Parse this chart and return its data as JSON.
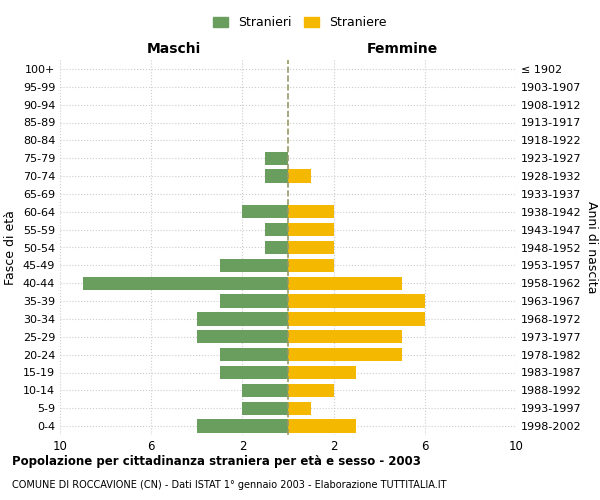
{
  "age_groups": [
    "0-4",
    "5-9",
    "10-14",
    "15-19",
    "20-24",
    "25-29",
    "30-34",
    "35-39",
    "40-44",
    "45-49",
    "50-54",
    "55-59",
    "60-64",
    "65-69",
    "70-74",
    "75-79",
    "80-84",
    "85-89",
    "90-94",
    "95-99",
    "100+"
  ],
  "birth_years": [
    "1998-2002",
    "1993-1997",
    "1988-1992",
    "1983-1987",
    "1978-1982",
    "1973-1977",
    "1968-1972",
    "1963-1967",
    "1958-1962",
    "1953-1957",
    "1948-1952",
    "1943-1947",
    "1938-1942",
    "1933-1937",
    "1928-1932",
    "1923-1927",
    "1918-1922",
    "1913-1917",
    "1908-1912",
    "1903-1907",
    "≤ 1902"
  ],
  "maschi": [
    4,
    2,
    2,
    3,
    3,
    4,
    4,
    3,
    9,
    3,
    1,
    1,
    2,
    0,
    1,
    1,
    0,
    0,
    0,
    0,
    0
  ],
  "femmine": [
    3,
    1,
    2,
    3,
    5,
    5,
    6,
    6,
    5,
    2,
    2,
    2,
    2,
    0,
    1,
    0,
    0,
    0,
    0,
    0,
    0
  ],
  "color_maschi": "#6a9e5e",
  "color_femmine": "#f5b800",
  "xlabel_left": "Maschi",
  "xlabel_right": "Femmine",
  "ylabel_left": "Fasce di età",
  "ylabel_right": "Anni di nascita",
  "legend_maschi": "Stranieri",
  "legend_femmine": "Straniere",
  "title": "Popolazione per cittadinanza straniera per età e sesso - 2003",
  "subtitle": "COMUNE DI ROCCAVIONE (CN) - Dati ISTAT 1° gennaio 2003 - Elaborazione TUTTITALIA.IT",
  "xlim": 10,
  "grid_color": "#cccccc",
  "bg_color": "#ffffff",
  "center_line_color": "#999966"
}
